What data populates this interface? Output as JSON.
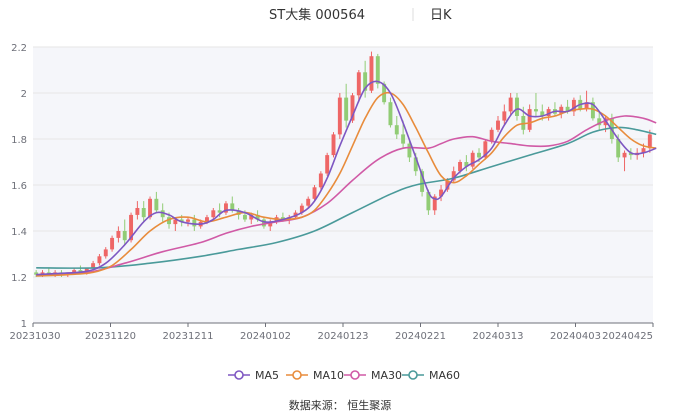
{
  "header": {
    "title": "ST大集 000564",
    "period": "日K"
  },
  "footer": {
    "source": "数据来源：  恒生聚源"
  },
  "colors": {
    "up": "#ee6666",
    "down": "#91cc75",
    "ma5": "#7e57c2",
    "ma10": "#e88c3c",
    "ma30": "#d05aa6",
    "ma60": "#4a9a9a",
    "grid": "#e6e6e6",
    "axis": "#6e7079",
    "plot_bg": "#f5f6fa"
  },
  "chart_data": {
    "type": "candlestick",
    "title": "ST大集 000564",
    "period": "日K",
    "xlabel": "",
    "ylabel": "",
    "ylim": [
      1.0,
      2.2
    ],
    "yticks": [
      1,
      1.2,
      1.4,
      1.6,
      1.8,
      2,
      2.2
    ],
    "grid": true,
    "legend_position": "bottom",
    "x_tick_labels": [
      "20231030",
      "20231120",
      "20231211",
      "20240102",
      "20240123",
      "20240221",
      "20240313",
      "20240403",
      "20240425"
    ],
    "ohlc": [
      [
        1.22,
        1.23,
        1.2,
        1.21
      ],
      [
        1.21,
        1.23,
        1.2,
        1.22
      ],
      [
        1.22,
        1.24,
        1.21,
        1.21
      ],
      [
        1.21,
        1.23,
        1.2,
        1.22
      ],
      [
        1.22,
        1.23,
        1.2,
        1.21
      ],
      [
        1.21,
        1.22,
        1.2,
        1.22
      ],
      [
        1.22,
        1.24,
        1.21,
        1.23
      ],
      [
        1.23,
        1.25,
        1.22,
        1.22
      ],
      [
        1.22,
        1.24,
        1.21,
        1.24
      ],
      [
        1.24,
        1.27,
        1.23,
        1.26
      ],
      [
        1.26,
        1.3,
        1.25,
        1.29
      ],
      [
        1.29,
        1.33,
        1.28,
        1.32
      ],
      [
        1.32,
        1.38,
        1.31,
        1.37
      ],
      [
        1.37,
        1.42,
        1.35,
        1.4
      ],
      [
        1.4,
        1.45,
        1.34,
        1.36
      ],
      [
        1.36,
        1.48,
        1.35,
        1.47
      ],
      [
        1.47,
        1.53,
        1.45,
        1.5
      ],
      [
        1.5,
        1.53,
        1.44,
        1.46
      ],
      [
        1.46,
        1.55,
        1.45,
        1.54
      ],
      [
        1.54,
        1.57,
        1.48,
        1.49
      ],
      [
        1.49,
        1.52,
        1.44,
        1.46
      ],
      [
        1.46,
        1.48,
        1.41,
        1.43
      ],
      [
        1.43,
        1.46,
        1.4,
        1.45
      ],
      [
        1.45,
        1.47,
        1.42,
        1.44
      ],
      [
        1.44,
        1.46,
        1.42,
        1.45
      ],
      [
        1.45,
        1.47,
        1.4,
        1.42
      ],
      [
        1.42,
        1.45,
        1.41,
        1.44
      ],
      [
        1.44,
        1.47,
        1.43,
        1.46
      ],
      [
        1.46,
        1.5,
        1.45,
        1.49
      ],
      [
        1.49,
        1.52,
        1.46,
        1.48
      ],
      [
        1.48,
        1.53,
        1.47,
        1.52
      ],
      [
        1.52,
        1.55,
        1.48,
        1.49
      ],
      [
        1.49,
        1.5,
        1.45,
        1.47
      ],
      [
        1.47,
        1.49,
        1.44,
        1.45
      ],
      [
        1.45,
        1.48,
        1.43,
        1.47
      ],
      [
        1.47,
        1.49,
        1.44,
        1.45
      ],
      [
        1.45,
        1.46,
        1.41,
        1.42
      ],
      [
        1.42,
        1.45,
        1.4,
        1.44
      ],
      [
        1.44,
        1.47,
        1.43,
        1.46
      ],
      [
        1.46,
        1.48,
        1.44,
        1.45
      ],
      [
        1.45,
        1.47,
        1.43,
        1.46
      ],
      [
        1.46,
        1.49,
        1.45,
        1.48
      ],
      [
        1.48,
        1.52,
        1.47,
        1.51
      ],
      [
        1.51,
        1.55,
        1.5,
        1.54
      ],
      [
        1.54,
        1.6,
        1.53,
        1.59
      ],
      [
        1.59,
        1.66,
        1.58,
        1.65
      ],
      [
        1.65,
        1.74,
        1.64,
        1.73
      ],
      [
        1.73,
        1.83,
        1.72,
        1.82
      ],
      [
        1.82,
        2.0,
        1.8,
        1.98
      ],
      [
        1.98,
        2.04,
        1.85,
        1.88
      ],
      [
        1.88,
        2.0,
        1.87,
        1.99
      ],
      [
        1.99,
        2.1,
        1.96,
        2.09
      ],
      [
        2.09,
        2.14,
        1.98,
        2.01
      ],
      [
        2.01,
        2.18,
        2.0,
        2.16
      ],
      [
        2.16,
        2.17,
        2.02,
        2.04
      ],
      [
        2.04,
        2.05,
        1.95,
        1.96
      ],
      [
        1.96,
        1.98,
        1.85,
        1.86
      ],
      [
        1.86,
        1.9,
        1.8,
        1.82
      ],
      [
        1.82,
        1.88,
        1.76,
        1.78
      ],
      [
        1.78,
        1.8,
        1.7,
        1.72
      ],
      [
        1.72,
        1.74,
        1.64,
        1.66
      ],
      [
        1.66,
        1.67,
        1.55,
        1.57
      ],
      [
        1.57,
        1.58,
        1.47,
        1.49
      ],
      [
        1.49,
        1.56,
        1.47,
        1.55
      ],
      [
        1.55,
        1.6,
        1.53,
        1.58
      ],
      [
        1.58,
        1.63,
        1.57,
        1.62
      ],
      [
        1.62,
        1.68,
        1.61,
        1.66
      ],
      [
        1.66,
        1.71,
        1.65,
        1.7
      ],
      [
        1.7,
        1.73,
        1.66,
        1.68
      ],
      [
        1.68,
        1.75,
        1.67,
        1.74
      ],
      [
        1.74,
        1.76,
        1.7,
        1.72
      ],
      [
        1.72,
        1.8,
        1.71,
        1.79
      ],
      [
        1.79,
        1.85,
        1.78,
        1.84
      ],
      [
        1.84,
        1.9,
        1.83,
        1.88
      ],
      [
        1.88,
        1.95,
        1.86,
        1.92
      ],
      [
        1.92,
        2.0,
        1.9,
        1.98
      ],
      [
        1.98,
        2.0,
        1.88,
        1.9
      ],
      [
        1.9,
        1.94,
        1.82,
        1.84
      ],
      [
        1.84,
        1.95,
        1.83,
        1.93
      ],
      [
        1.93,
        2.0,
        1.9,
        1.92
      ],
      [
        1.92,
        1.95,
        1.88,
        1.9
      ],
      [
        1.9,
        1.94,
        1.88,
        1.93
      ],
      [
        1.93,
        1.96,
        1.9,
        1.91
      ],
      [
        1.91,
        1.95,
        1.89,
        1.94
      ],
      [
        1.94,
        1.97,
        1.91,
        1.92
      ],
      [
        1.92,
        1.98,
        1.9,
        1.97
      ],
      [
        1.97,
        1.99,
        1.92,
        1.93
      ],
      [
        1.93,
        2.01,
        1.92,
        1.96
      ],
      [
        1.96,
        1.98,
        1.88,
        1.89
      ],
      [
        1.89,
        1.92,
        1.84,
        1.86
      ],
      [
        1.86,
        1.9,
        1.83,
        1.89
      ],
      [
        1.89,
        1.91,
        1.78,
        1.8
      ],
      [
        1.8,
        1.82,
        1.7,
        1.72
      ],
      [
        1.72,
        1.75,
        1.66,
        1.74
      ],
      [
        1.74,
        1.76,
        1.71,
        1.73
      ],
      [
        1.73,
        1.76,
        1.71,
        1.74
      ],
      [
        1.74,
        1.78,
        1.72,
        1.76
      ],
      [
        1.76,
        1.84,
        1.74,
        1.82
      ]
    ],
    "series": [
      {
        "name": "MA5",
        "points": [
          [
            0,
            1.21
          ],
          [
            3,
            1.215
          ],
          [
            8,
            1.225
          ],
          [
            11,
            1.26
          ],
          [
            14,
            1.34
          ],
          [
            17,
            1.44
          ],
          [
            19,
            1.48
          ],
          [
            21,
            1.47
          ],
          [
            23,
            1.44
          ],
          [
            26,
            1.43
          ],
          [
            28,
            1.45
          ],
          [
            30,
            1.49
          ],
          [
            33,
            1.48
          ],
          [
            36,
            1.44
          ],
          [
            39,
            1.45
          ],
          [
            42,
            1.48
          ],
          [
            44,
            1.53
          ],
          [
            46,
            1.63
          ],
          [
            48,
            1.77
          ],
          [
            50,
            1.9
          ],
          [
            52,
            2.02
          ],
          [
            54,
            2.05
          ],
          [
            56,
            2.0
          ],
          [
            58,
            1.87
          ],
          [
            60,
            1.72
          ],
          [
            62,
            1.57
          ],
          [
            63,
            1.54
          ],
          [
            64,
            1.55
          ],
          [
            66,
            1.63
          ],
          [
            68,
            1.68
          ],
          [
            70,
            1.71
          ],
          [
            72,
            1.76
          ],
          [
            74,
            1.86
          ],
          [
            76,
            1.93
          ],
          [
            78,
            1.9
          ],
          [
            80,
            1.9
          ],
          [
            82,
            1.92
          ],
          [
            84,
            1.92
          ],
          [
            86,
            1.95
          ],
          [
            88,
            1.95
          ],
          [
            90,
            1.88
          ],
          [
            92,
            1.8
          ],
          [
            94,
            1.74
          ],
          [
            96,
            1.74
          ],
          [
            98,
            1.76
          ]
        ]
      },
      {
        "name": "MA10",
        "points": [
          [
            0,
            1.205
          ],
          [
            5,
            1.21
          ],
          [
            9,
            1.22
          ],
          [
            12,
            1.25
          ],
          [
            15,
            1.32
          ],
          [
            18,
            1.4
          ],
          [
            21,
            1.45
          ],
          [
            24,
            1.46
          ],
          [
            27,
            1.44
          ],
          [
            30,
            1.46
          ],
          [
            33,
            1.48
          ],
          [
            36,
            1.46
          ],
          [
            39,
            1.45
          ],
          [
            42,
            1.46
          ],
          [
            44,
            1.49
          ],
          [
            46,
            1.56
          ],
          [
            48,
            1.65
          ],
          [
            50,
            1.77
          ],
          [
            52,
            1.89
          ],
          [
            54,
            1.98
          ],
          [
            56,
            2.0
          ],
          [
            58,
            1.95
          ],
          [
            60,
            1.85
          ],
          [
            62,
            1.74
          ],
          [
            64,
            1.64
          ],
          [
            66,
            1.61
          ],
          [
            68,
            1.64
          ],
          [
            70,
            1.69
          ],
          [
            72,
            1.74
          ],
          [
            74,
            1.81
          ],
          [
            76,
            1.86
          ],
          [
            78,
            1.87
          ],
          [
            80,
            1.89
          ],
          [
            82,
            1.9
          ],
          [
            84,
            1.92
          ],
          [
            86,
            1.93
          ],
          [
            88,
            1.93
          ],
          [
            90,
            1.9
          ],
          [
            92,
            1.85
          ],
          [
            94,
            1.8
          ],
          [
            96,
            1.77
          ],
          [
            98,
            1.76
          ]
        ]
      },
      {
        "name": "MA30",
        "points": [
          [
            0,
            1.21
          ],
          [
            8,
            1.22
          ],
          [
            14,
            1.26
          ],
          [
            20,
            1.31
          ],
          [
            26,
            1.35
          ],
          [
            30,
            1.39
          ],
          [
            34,
            1.42
          ],
          [
            38,
            1.44
          ],
          [
            42,
            1.46
          ],
          [
            46,
            1.52
          ],
          [
            50,
            1.62
          ],
          [
            54,
            1.71
          ],
          [
            58,
            1.76
          ],
          [
            62,
            1.76
          ],
          [
            64,
            1.78
          ],
          [
            66,
            1.8
          ],
          [
            69,
            1.81
          ],
          [
            72,
            1.79
          ],
          [
            75,
            1.78
          ],
          [
            78,
            1.77
          ],
          [
            81,
            1.77
          ],
          [
            84,
            1.79
          ],
          [
            87,
            1.84
          ],
          [
            90,
            1.88
          ],
          [
            93,
            1.9
          ],
          [
            96,
            1.89
          ],
          [
            98,
            1.87
          ]
        ]
      },
      {
        "name": "MA60",
        "points": [
          [
            0,
            1.24
          ],
          [
            10,
            1.24
          ],
          [
            18,
            1.26
          ],
          [
            26,
            1.29
          ],
          [
            32,
            1.32
          ],
          [
            38,
            1.35
          ],
          [
            44,
            1.4
          ],
          [
            50,
            1.48
          ],
          [
            56,
            1.56
          ],
          [
            60,
            1.6
          ],
          [
            66,
            1.63
          ],
          [
            72,
            1.68
          ],
          [
            78,
            1.73
          ],
          [
            84,
            1.78
          ],
          [
            88,
            1.83
          ],
          [
            92,
            1.85
          ],
          [
            95,
            1.84
          ],
          [
            98,
            1.82
          ]
        ]
      }
    ]
  },
  "legend": {
    "items": [
      {
        "label": "MA5",
        "color": "#7e57c2"
      },
      {
        "label": "MA10",
        "color": "#e88c3c"
      },
      {
        "label": "MA30",
        "color": "#d05aa6"
      },
      {
        "label": "MA60",
        "color": "#4a9a9a"
      }
    ]
  }
}
